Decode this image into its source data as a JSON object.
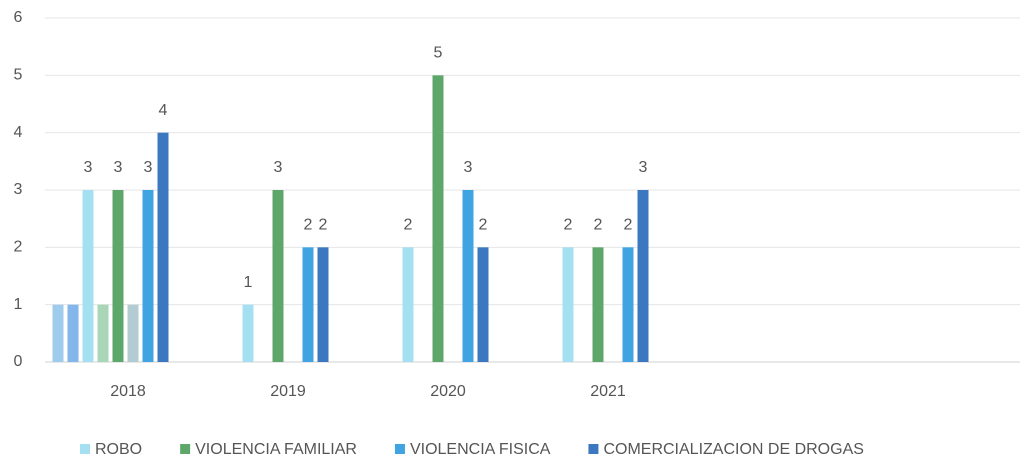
{
  "chart_data": {
    "type": "bar",
    "categories": [
      "2018",
      "2019",
      "2020",
      "2021"
    ],
    "series": [
      {
        "color": "#9fcbed",
        "values": [
          1,
          null,
          null,
          null
        ]
      },
      {
        "color": "#83b6ea",
        "values": [
          1,
          null,
          null,
          null
        ]
      },
      {
        "name": "ROBO",
        "color": "#a4e0f2",
        "values": [
          3,
          1,
          2,
          2
        ]
      },
      {
        "color": "#a9d6b6",
        "values": [
          1,
          null,
          null,
          null
        ]
      },
      {
        "name": "VIOLENCIA FAMILIAR",
        "color": "#5ea76b",
        "values": [
          3,
          3,
          5,
          2
        ]
      },
      {
        "color": "#b3ccd3",
        "values": [
          1,
          null,
          null,
          null
        ]
      },
      {
        "name": "VIOLENCIA FISICA",
        "color": "#40a4e2",
        "values": [
          3,
          2,
          3,
          2
        ]
      },
      {
        "name": "COMERCIALIZACION DE DROGAS",
        "color": "#3c78c0",
        "values": [
          4,
          2,
          2,
          3
        ]
      }
    ],
    "ylim": [
      0,
      6
    ],
    "yticks": [
      0,
      1,
      2,
      3,
      4,
      5,
      6
    ],
    "grid": true,
    "legend": "bottom"
  }
}
